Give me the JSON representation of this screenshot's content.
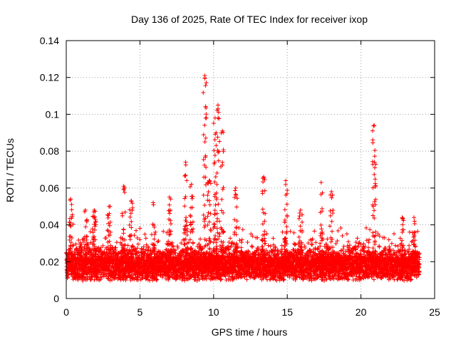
{
  "chart_data": {
    "type": "scatter",
    "title": "Day 136 of 2025, Rate Of TEC Index for receiver ixop",
    "xlabel": "GPS time / hours",
    "ylabel": "ROTI / TECUs",
    "xlim": [
      0,
      25
    ],
    "ylim": [
      0,
      0.14
    ],
    "x_ticks": [
      "0",
      "5",
      "10",
      "15",
      "20",
      "25"
    ],
    "y_ticks": [
      "0",
      "0.02",
      "0.04",
      "0.06",
      "0.08",
      "0.1",
      "0.12",
      "0.14"
    ],
    "grid": true,
    "marker": "+",
    "color": "#ff0000",
    "time_step_hours": 0.0125,
    "baseline_roti": 0.015,
    "peaks": [
      {
        "x": 0.3,
        "y": 0.054
      },
      {
        "x": 1.3,
        "y": 0.048
      },
      {
        "x": 1.9,
        "y": 0.048
      },
      {
        "x": 2.9,
        "y": 0.05
      },
      {
        "x": 3.9,
        "y": 0.061
      },
      {
        "x": 4.4,
        "y": 0.053
      },
      {
        "x": 5.9,
        "y": 0.052
      },
      {
        "x": 7.0,
        "y": 0.055
      },
      {
        "x": 8.1,
        "y": 0.074
      },
      {
        "x": 8.5,
        "y": 0.062
      },
      {
        "x": 9.4,
        "y": 0.121
      },
      {
        "x": 9.7,
        "y": 0.064
      },
      {
        "x": 10.1,
        "y": 0.098
      },
      {
        "x": 10.3,
        "y": 0.105
      },
      {
        "x": 10.6,
        "y": 0.091
      },
      {
        "x": 11.5,
        "y": 0.06
      },
      {
        "x": 13.4,
        "y": 0.066
      },
      {
        "x": 14.9,
        "y": 0.064
      },
      {
        "x": 15.9,
        "y": 0.048
      },
      {
        "x": 17.3,
        "y": 0.063
      },
      {
        "x": 18.0,
        "y": 0.058
      },
      {
        "x": 20.9,
        "y": 0.094
      },
      {
        "x": 22.8,
        "y": 0.044
      },
      {
        "x": 23.6,
        "y": 0.044
      }
    ]
  }
}
